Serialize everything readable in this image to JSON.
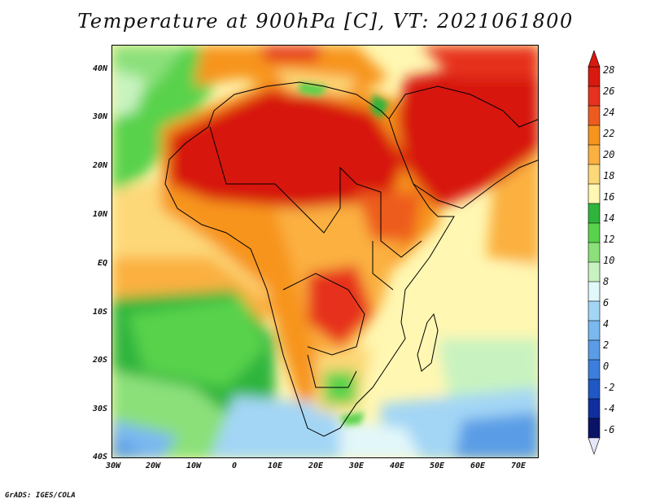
{
  "title": "Temperature at 900hPa [C], VT: 2021061800",
  "credit": "GrADS: IGES/COLA",
  "lat_labels": [
    "40N",
    "30N",
    "20N",
    "10N",
    "EQ",
    "10S",
    "20S",
    "30S",
    "40S"
  ],
  "lon_labels": [
    "30W",
    "20W",
    "10W",
    "0",
    "10E",
    "20E",
    "30E",
    "40E",
    "50E",
    "60E",
    "70E"
  ],
  "colorbar": {
    "labels": [
      "28",
      "26",
      "24",
      "22",
      "20",
      "18",
      "16",
      "14",
      "12",
      "10",
      "8",
      "6",
      "4",
      "2",
      "0",
      "-2",
      "-4",
      "-6"
    ],
    "colors": [
      "#d7190f",
      "#e6321e",
      "#ed5c1e",
      "#f7941e",
      "#fbb040",
      "#fdd878",
      "#fff7b2",
      "#2fb53c",
      "#59d24b",
      "#8be07a",
      "#c8f3c0",
      "#e2f7f9",
      "#a3d6f5",
      "#7ab8f0",
      "#5a9de6",
      "#3b7ede",
      "#1f57c4",
      "#0f2f9e",
      "#0a1366"
    ]
  }
}
